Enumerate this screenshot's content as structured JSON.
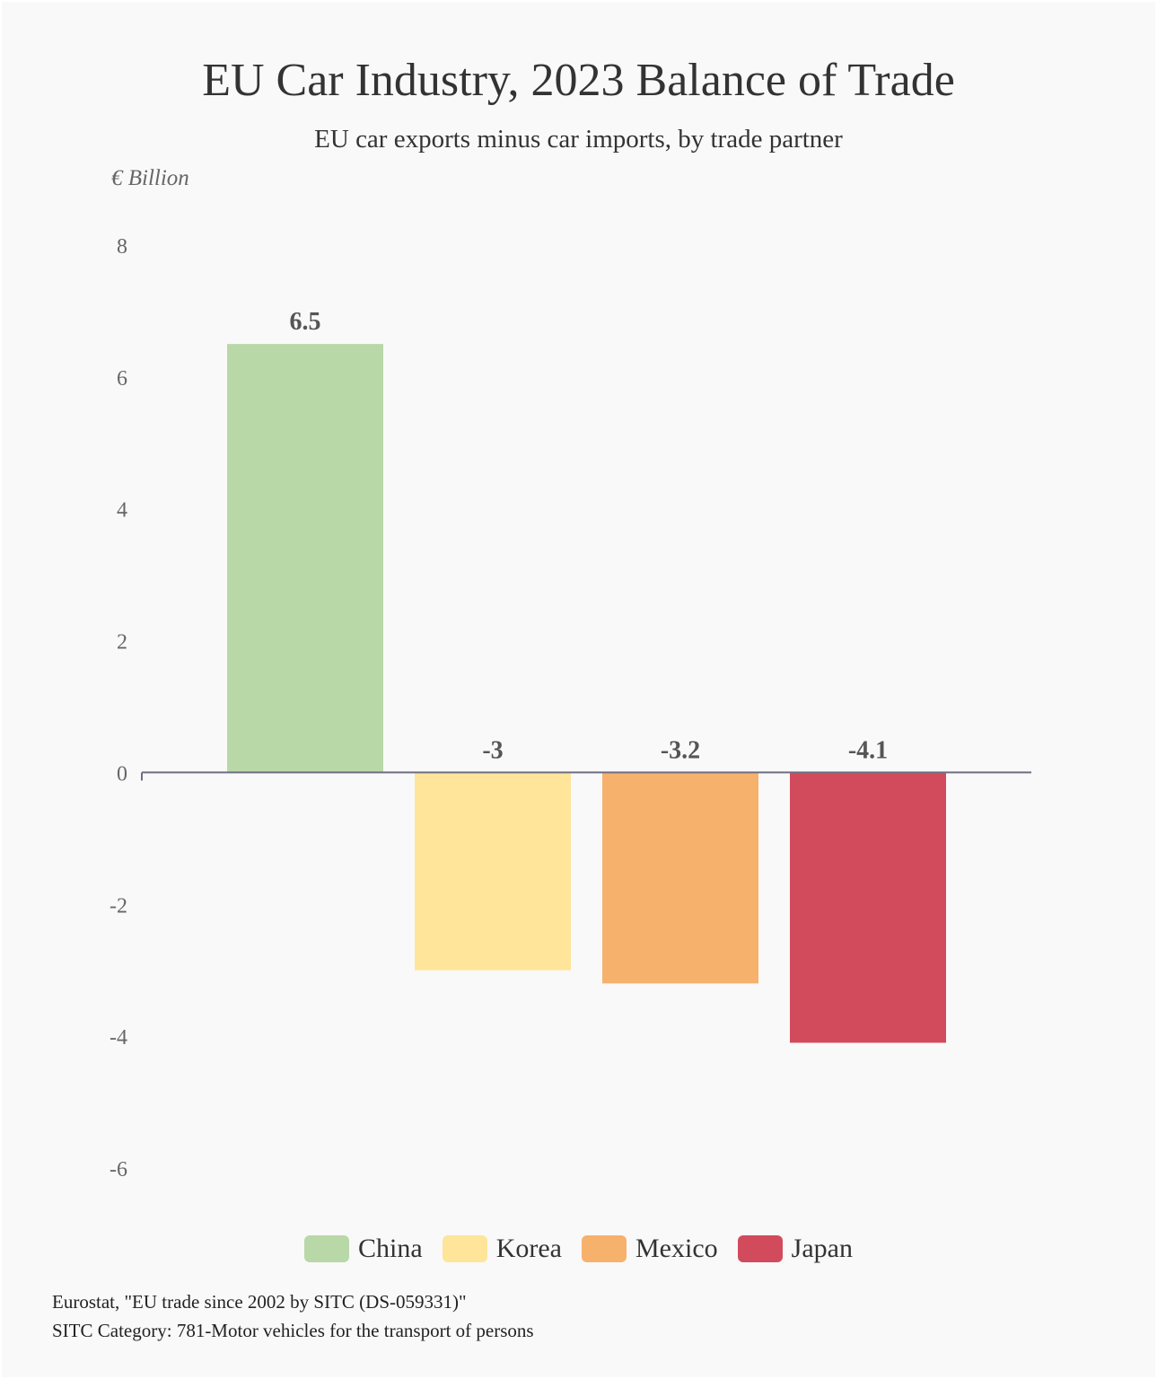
{
  "chart_data": {
    "type": "bar",
    "title": "EU Car Industry, 2023 Balance of Trade",
    "subtitle": "EU car exports minus car imports, by trade partner",
    "ylabel": "€ Billion",
    "categories": [
      "China",
      "Korea",
      "Mexico",
      "Japan"
    ],
    "values": [
      6.5,
      -3,
      -3.2,
      -4.1
    ],
    "data_labels": [
      "6.5",
      "-3",
      "-3.2",
      "-4.1"
    ],
    "colors": [
      "#b9d8a8",
      "#fee59a",
      "#f6b16d",
      "#d24b5d"
    ],
    "ylim": [
      -6,
      8
    ],
    "yticks": [
      8,
      6,
      4,
      2,
      0,
      -2,
      -4,
      -6
    ],
    "ytick_labels": [
      "8",
      "6",
      "4",
      "2",
      "0",
      "-2",
      "-4",
      "-6"
    ],
    "legend_position": "bottom",
    "grid": false
  },
  "source": {
    "line1": "Eurostat, \"EU trade since 2002 by SITC (DS-059331)\"",
    "line2": "SITC Category: 781-Motor vehicles for the transport of persons"
  }
}
